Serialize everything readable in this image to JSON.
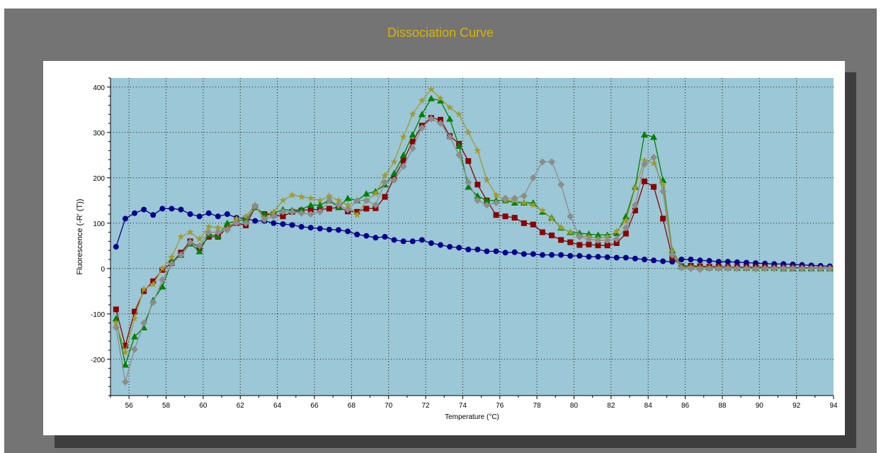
{
  "chart_title": "Dissociation Curve",
  "colors": {
    "plot_bg": "#9bc7d6",
    "frame_bg": "#747474",
    "title": "#d8b400"
  },
  "chart_data": {
    "type": "line",
    "title": "Dissociation Curve",
    "xlabel": "Temperature (°C)",
    "ylabel": "Fluorescence (-R' (T))",
    "xlim": [
      55,
      94
    ],
    "ylim": [
      -280,
      420
    ],
    "x_ticks": [
      56,
      58,
      60,
      62,
      64,
      66,
      68,
      70,
      72,
      74,
      76,
      78,
      80,
      82,
      84,
      86,
      88,
      90,
      92,
      94
    ],
    "y_ticks": [
      -200,
      -100,
      0,
      100,
      200,
      300,
      400
    ],
    "grid": true,
    "series": [
      {
        "color": "#00008b",
        "marker": "circle",
        "x": [
          55.3,
          55.8,
          56.3,
          56.8,
          57.3,
          57.8,
          58.3,
          58.8,
          59.3,
          59.8,
          60.3,
          60.8,
          61.3,
          61.8,
          62.3,
          62.8,
          63.3,
          63.8,
          64.3,
          64.8,
          65.3,
          65.8,
          66.3,
          66.8,
          67.3,
          67.8,
          68.3,
          68.8,
          69.3,
          69.8,
          70.3,
          70.8,
          71.3,
          71.8,
          72.3,
          72.8,
          73.3,
          73.8,
          74.3,
          74.8,
          75.3,
          75.8,
          76.3,
          76.8,
          77.3,
          77.8,
          78.3,
          78.8,
          79.3,
          79.8,
          80.3,
          80.8,
          81.3,
          81.8,
          82.3,
          82.8,
          83.3,
          83.8,
          84.3,
          84.8,
          85.3,
          85.8,
          86.3,
          86.8,
          87.3,
          87.8,
          88.3,
          88.8,
          89.3,
          89.8,
          90.3,
          90.8,
          91.3,
          91.8,
          92.3,
          92.8,
          93.3,
          93.8
        ],
        "y": [
          48,
          110,
          122,
          130,
          118,
          132,
          132,
          130,
          120,
          115,
          122,
          115,
          120,
          112,
          110,
          105,
          105,
          100,
          98,
          96,
          92,
          90,
          88,
          86,
          85,
          82,
          75,
          72,
          68,
          70,
          63,
          60,
          60,
          63,
          56,
          52,
          48,
          46,
          42,
          42,
          38,
          38,
          35,
          36,
          32,
          32,
          30,
          30,
          30,
          28,
          28,
          26,
          26,
          25,
          24,
          24,
          22,
          20,
          18,
          16,
          15,
          20,
          20,
          18,
          17,
          15,
          15,
          14,
          13,
          12,
          11,
          10,
          10,
          9,
          8,
          7,
          6,
          5
        ]
      },
      {
        "color": "#8b0000",
        "marker": "square",
        "x": [
          55.3,
          55.8,
          56.3,
          56.8,
          57.3,
          57.8,
          58.3,
          58.8,
          59.3,
          59.8,
          60.3,
          60.8,
          61.3,
          61.8,
          62.3,
          62.8,
          63.3,
          63.8,
          64.3,
          64.8,
          65.3,
          65.8,
          66.3,
          66.8,
          67.3,
          67.8,
          68.3,
          68.8,
          69.3,
          69.8,
          70.3,
          70.8,
          71.3,
          71.8,
          72.3,
          72.8,
          73.3,
          73.8,
          74.3,
          74.8,
          75.3,
          75.8,
          76.3,
          76.8,
          77.3,
          77.8,
          78.3,
          78.8,
          79.3,
          79.8,
          80.3,
          80.8,
          81.3,
          81.8,
          82.3,
          82.8,
          83.3,
          83.8,
          84.3,
          84.8,
          85.3,
          85.8,
          86.3,
          86.8,
          87.3,
          87.8,
          88.3,
          88.8,
          89.3,
          89.8,
          90.3,
          90.8,
          91.3,
          91.8,
          92.3,
          92.8,
          93.3,
          93.8
        ],
        "y": [
          -90,
          -170,
          -95,
          -50,
          -28,
          -3,
          12,
          35,
          60,
          45,
          70,
          70,
          90,
          100,
          95,
          135,
          120,
          118,
          115,
          125,
          128,
          130,
          130,
          132,
          135,
          126,
          125,
          132,
          133,
          158,
          200,
          238,
          280,
          315,
          332,
          328,
          292,
          275,
          237,
          185,
          150,
          118,
          115,
          112,
          100,
          97,
          80,
          73,
          63,
          58,
          52,
          53,
          51,
          51,
          56,
          77,
          128,
          192,
          180,
          110,
          24,
          5,
          6,
          5,
          4,
          4,
          3,
          3,
          3,
          3,
          3,
          2,
          2,
          2,
          2,
          1,
          1,
          1
        ]
      },
      {
        "color": "#008000",
        "marker": "triangle",
        "x": [
          55.3,
          55.8,
          56.3,
          56.8,
          57.3,
          57.8,
          58.3,
          58.8,
          59.3,
          59.8,
          60.3,
          60.8,
          61.3,
          61.8,
          62.3,
          62.8,
          63.3,
          63.8,
          64.3,
          64.8,
          65.3,
          65.8,
          66.3,
          66.8,
          67.3,
          67.8,
          68.3,
          68.8,
          69.3,
          69.8,
          70.3,
          70.8,
          71.3,
          71.8,
          72.3,
          72.8,
          73.3,
          73.8,
          74.3,
          74.8,
          75.3,
          75.8,
          76.3,
          76.8,
          77.3,
          77.8,
          78.3,
          78.8,
          79.3,
          79.8,
          80.3,
          80.8,
          81.3,
          81.8,
          82.3,
          82.8,
          83.3,
          83.8,
          84.3,
          84.8,
          85.3,
          85.8,
          86.3,
          86.8,
          87.3,
          87.8,
          88.3,
          88.8,
          89.3,
          89.8,
          90.3,
          90.8,
          91.3,
          91.8,
          92.3,
          92.8,
          93.3,
          93.8
        ],
        "y": [
          -110,
          -212,
          -150,
          -130,
          -70,
          -40,
          15,
          30,
          55,
          38,
          75,
          72,
          100,
          105,
          108,
          135,
          120,
          122,
          130,
          128,
          130,
          140,
          140,
          150,
          135,
          155,
          150,
          165,
          170,
          185,
          210,
          250,
          295,
          340,
          375,
          370,
          330,
          270,
          180,
          160,
          150,
          150,
          150,
          145,
          145,
          145,
          125,
          112,
          90,
          80,
          78,
          76,
          74,
          74,
          78,
          115,
          180,
          295,
          290,
          195,
          40,
          5,
          4,
          3,
          2,
          2,
          2,
          1,
          1,
          1,
          1,
          1,
          0,
          0,
          0,
          0,
          0,
          0
        ]
      },
      {
        "color": "#a09a30",
        "marker": "star",
        "x": [
          55.3,
          55.8,
          56.3,
          56.8,
          57.3,
          57.8,
          58.3,
          58.8,
          59.3,
          59.8,
          60.3,
          60.8,
          61.3,
          61.8,
          62.3,
          62.8,
          63.3,
          63.8,
          64.3,
          64.8,
          65.3,
          65.8,
          66.3,
          66.8,
          67.3,
          67.8,
          68.3,
          68.8,
          69.3,
          69.8,
          70.3,
          70.8,
          71.3,
          71.8,
          72.3,
          72.8,
          73.3,
          73.8,
          74.3,
          74.8,
          75.3,
          75.8,
          76.3,
          76.8,
          77.3,
          77.8,
          78.3,
          78.8,
          79.3,
          79.8,
          80.3,
          80.8,
          81.3,
          81.8,
          82.3,
          82.8,
          83.3,
          83.8,
          84.3,
          84.8,
          85.3,
          85.8,
          86.3,
          86.8,
          87.3,
          87.8,
          88.3,
          88.8,
          89.3,
          89.8,
          90.3,
          90.8,
          91.3,
          91.8,
          92.3,
          92.8,
          93.3,
          93.8
        ],
        "y": [
          -120,
          -185,
          -110,
          -45,
          -35,
          0,
          25,
          70,
          80,
          65,
          92,
          90,
          88,
          110,
          115,
          140,
          110,
          125,
          150,
          162,
          158,
          155,
          150,
          160,
          150,
          140,
          118,
          150,
          165,
          205,
          235,
          290,
          340,
          370,
          395,
          375,
          355,
          340,
          300,
          260,
          195,
          162,
          150,
          150,
          145,
          140,
          128,
          110,
          90,
          80,
          72,
          70,
          66,
          70,
          82,
          105,
          178,
          238,
          232,
          185,
          38,
          2,
          3,
          2,
          2,
          2,
          2,
          1,
          1,
          1,
          1,
          1,
          1,
          1,
          0,
          0,
          0,
          0
        ]
      },
      {
        "color": "#8c8c8c",
        "marker": "diamond",
        "x": [
          55.3,
          55.8,
          56.3,
          56.8,
          57.3,
          57.8,
          58.3,
          58.8,
          59.3,
          59.8,
          60.3,
          60.8,
          61.3,
          61.8,
          62.3,
          62.8,
          63.3,
          63.8,
          64.3,
          64.8,
          65.3,
          65.8,
          66.3,
          66.8,
          67.3,
          67.8,
          68.3,
          68.8,
          69.3,
          69.8,
          70.3,
          70.8,
          71.3,
          71.8,
          72.3,
          72.8,
          73.3,
          73.8,
          74.3,
          74.8,
          75.3,
          75.8,
          76.3,
          76.8,
          77.3,
          77.8,
          78.3,
          78.8,
          79.3,
          79.8,
          80.3,
          80.8,
          81.3,
          81.8,
          82.3,
          82.8,
          83.3,
          83.8,
          84.3,
          84.8,
          85.3,
          85.8,
          86.3,
          86.8,
          87.3,
          87.8,
          88.3,
          88.8,
          89.3,
          89.8,
          90.3,
          90.8,
          91.3,
          91.8,
          92.3,
          92.8,
          93.3,
          93.8
        ],
        "y": [
          -130,
          -250,
          -178,
          -120,
          -75,
          -25,
          10,
          30,
          58,
          50,
          80,
          80,
          85,
          100,
          100,
          138,
          108,
          115,
          125,
          125,
          122,
          120,
          125,
          150,
          140,
          130,
          150,
          150,
          140,
          190,
          195,
          225,
          265,
          310,
          330,
          320,
          290,
          250,
          190,
          150,
          140,
          145,
          155,
          155,
          160,
          200,
          235,
          235,
          185,
          115,
          70,
          65,
          62,
          62,
          65,
          90,
          140,
          230,
          245,
          170,
          30,
          2,
          0,
          -2,
          0,
          0,
          0,
          0,
          0,
          -1,
          0,
          0,
          0,
          0,
          0,
          0,
          0,
          0
        ]
      }
    ]
  }
}
